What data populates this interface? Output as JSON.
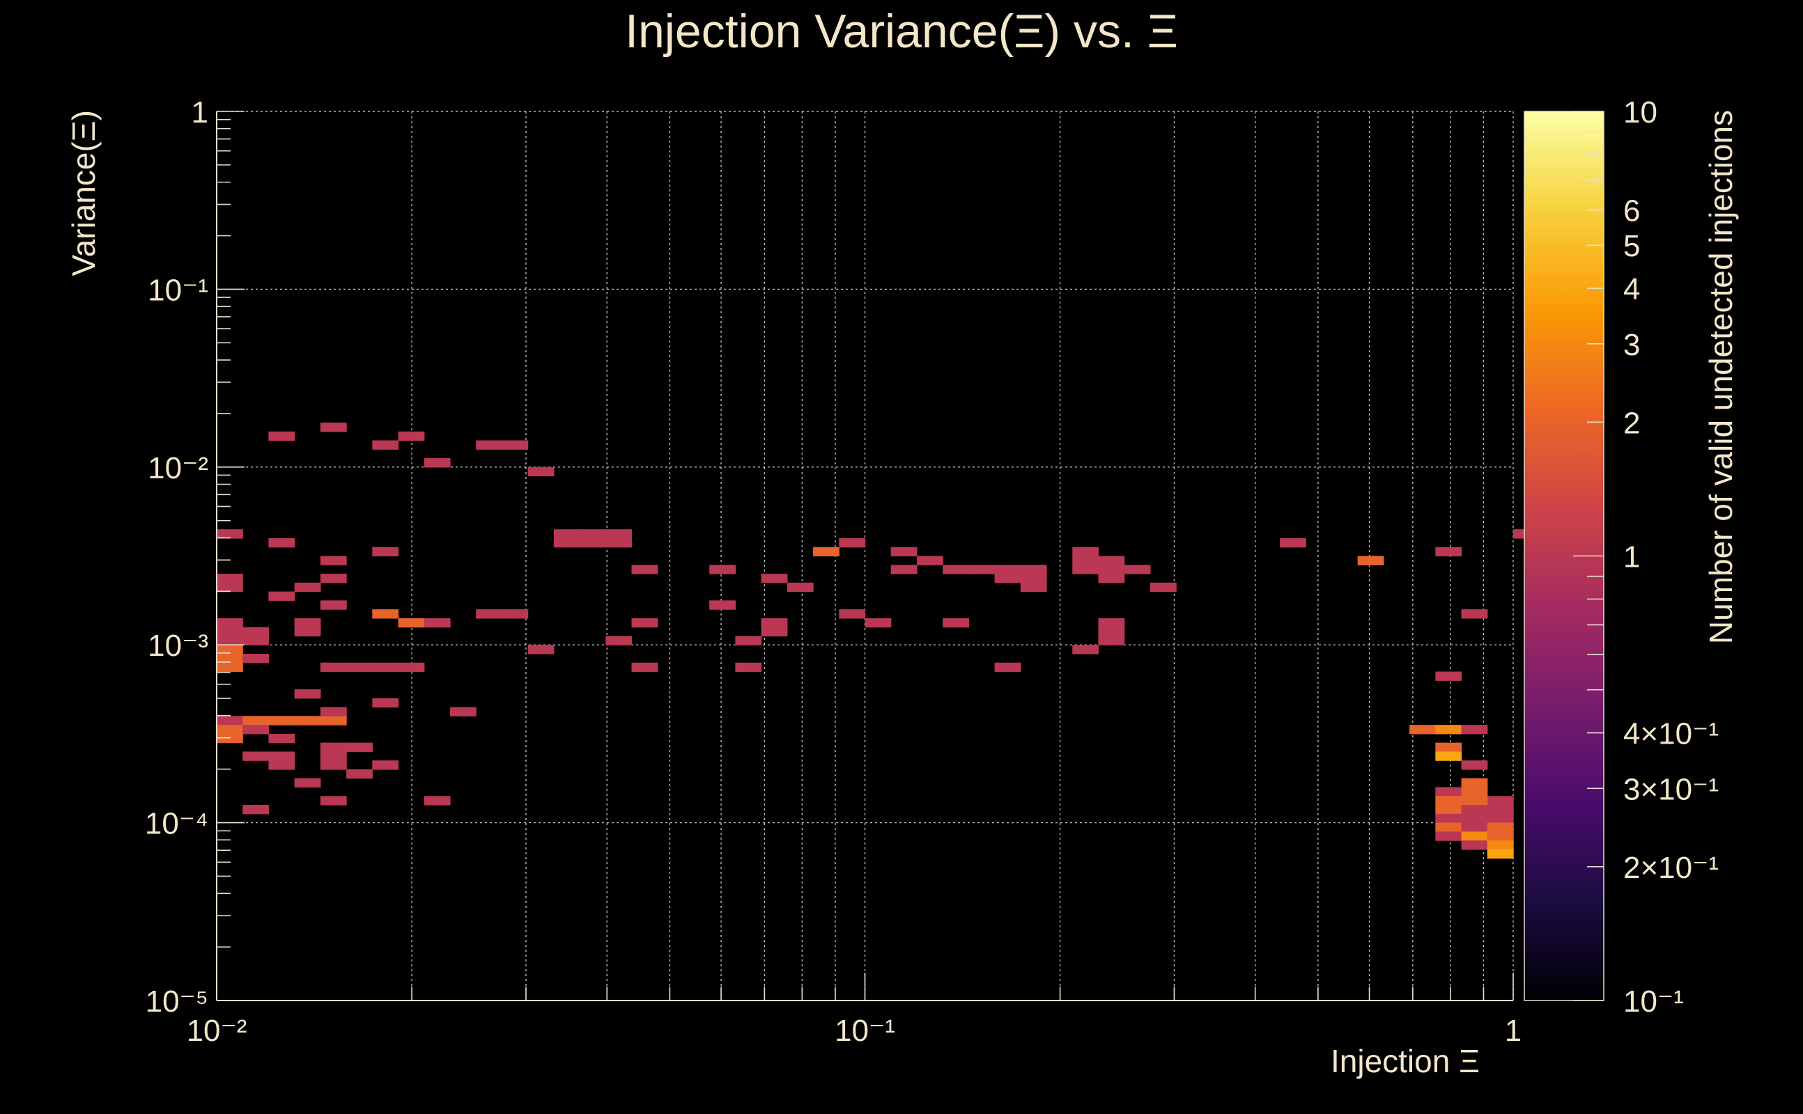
{
  "chart_data": {
    "type": "heatmap",
    "title": "Injection Variance(Ξ) vs. Ξ",
    "xlabel": "Injection Ξ",
    "ylabel": "Variance(Ξ)",
    "zlabel": "Number of valid undetected injections",
    "xscale": "log",
    "yscale": "log",
    "zscale": "log",
    "xlim": [
      0.01,
      1
    ],
    "ylim": [
      1e-05,
      1
    ],
    "zlim": [
      0.1,
      10
    ],
    "x_bins_per_decade": 25,
    "y_bins_per_decade": 20,
    "x_ticks": [
      {
        "value": 0.01,
        "label": "10⁻²"
      },
      {
        "value": 0.1,
        "label": "10⁻¹"
      },
      {
        "value": 1,
        "label": "1"
      }
    ],
    "y_ticks": [
      {
        "value": 1,
        "label": "1"
      },
      {
        "value": 0.1,
        "label": "10⁻¹"
      },
      {
        "value": 0.01,
        "label": "10⁻²"
      },
      {
        "value": 0.001,
        "label": "10⁻³"
      },
      {
        "value": 0.0001,
        "label": "10⁻⁴"
      },
      {
        "value": 1e-05,
        "label": "10⁻⁵"
      }
    ],
    "z_ticks": [
      {
        "value": 10,
        "label": "10"
      },
      {
        "value": 6,
        "label": "6"
      },
      {
        "value": 5,
        "label": "5"
      },
      {
        "value": 4,
        "label": "4"
      },
      {
        "value": 3,
        "label": "3"
      },
      {
        "value": 2,
        "label": "2"
      },
      {
        "value": 1,
        "label": "1"
      },
      {
        "value": 0.4,
        "label": "4×10⁻¹"
      },
      {
        "value": 0.3,
        "label": "3×10⁻¹"
      },
      {
        "value": 0.2,
        "label": "2×10⁻¹"
      },
      {
        "value": 0.1,
        "label": "10⁻¹"
      }
    ],
    "palette": [
      "#000004",
      "#1b0c41",
      "#4a0c6b",
      "#781c6d",
      "#a52c60",
      "#cf4446",
      "#ed6925",
      "#fb9b06",
      "#f7d13d",
      "#fcffa4"
    ],
    "cells_note": "each cell: [x_bin_index, y_bin_index, count]; x bin i spans 10^(-2+i/25) to 10^(-2+(i+1)/25); y bin j spans 10^(-5+j/20) to 10^(-5+(j+1)/20)",
    "cells": [
      [
        2,
        63,
        1
      ],
      [
        4,
        64,
        1
      ],
      [
        6,
        62,
        1
      ],
      [
        7,
        63,
        1
      ],
      [
        8,
        60,
        1
      ],
      [
        10,
        62,
        1
      ],
      [
        11,
        62,
        1
      ],
      [
        12,
        59,
        1
      ],
      [
        0,
        52,
        1
      ],
      [
        2,
        51,
        1
      ],
      [
        4,
        49,
        1
      ],
      [
        6,
        50,
        1
      ],
      [
        13,
        51,
        1
      ],
      [
        14,
        51,
        1
      ],
      [
        13,
        52,
        1
      ],
      [
        14,
        52,
        1
      ],
      [
        15,
        51,
        1
      ],
      [
        15,
        52,
        1
      ],
      [
        16,
        48,
        1
      ],
      [
        19,
        48,
        1
      ],
      [
        21,
        47,
        1
      ],
      [
        22,
        46,
        1
      ],
      [
        23,
        50,
        2
      ],
      [
        24,
        51,
        1
      ],
      [
        26,
        50,
        1
      ],
      [
        27,
        49,
        1
      ],
      [
        26,
        48,
        1
      ],
      [
        28,
        48,
        1
      ],
      [
        29,
        48,
        1
      ],
      [
        30,
        48,
        1
      ],
      [
        31,
        48,
        1
      ],
      [
        30,
        47,
        1
      ],
      [
        31,
        47,
        1
      ],
      [
        31,
        46,
        1
      ],
      [
        33,
        50,
        1
      ],
      [
        33,
        49,
        1
      ],
      [
        34,
        49,
        1
      ],
      [
        33,
        48,
        1
      ],
      [
        34,
        48,
        1
      ],
      [
        35,
        48,
        1
      ],
      [
        34,
        47,
        1
      ],
      [
        36,
        46,
        1
      ],
      [
        41,
        51,
        1
      ],
      [
        44,
        49,
        2
      ],
      [
        47,
        50,
        1
      ],
      [
        50,
        52,
        1
      ],
      [
        0,
        47,
        1
      ],
      [
        0,
        46,
        1
      ],
      [
        2,
        45,
        1
      ],
      [
        3,
        46,
        1
      ],
      [
        4,
        44,
        1
      ],
      [
        4,
        47,
        1
      ],
      [
        6,
        43,
        2
      ],
      [
        7,
        42,
        2
      ],
      [
        8,
        42,
        1
      ],
      [
        10,
        43,
        1
      ],
      [
        11,
        43,
        1
      ],
      [
        12,
        39,
        1
      ],
      [
        15,
        40,
        1
      ],
      [
        16,
        42,
        1
      ],
      [
        19,
        44,
        1
      ],
      [
        20,
        40,
        1
      ],
      [
        21,
        41,
        1
      ],
      [
        21,
        42,
        1
      ],
      [
        24,
        43,
        1
      ],
      [
        25,
        42,
        1
      ],
      [
        28,
        42,
        1
      ],
      [
        33,
        39,
        1
      ],
      [
        34,
        42,
        1
      ],
      [
        34,
        41,
        1
      ],
      [
        34,
        40,
        1
      ],
      [
        48,
        43,
        1
      ],
      [
        0,
        42,
        1
      ],
      [
        0,
        41,
        1
      ],
      [
        0,
        40,
        1
      ],
      [
        1,
        40,
        1
      ],
      [
        1,
        41,
        1
      ],
      [
        3,
        41,
        1
      ],
      [
        3,
        42,
        1
      ],
      [
        0,
        39,
        2
      ],
      [
        0,
        38,
        2
      ],
      [
        0,
        37,
        2
      ],
      [
        1,
        38,
        1
      ],
      [
        4,
        37,
        1
      ],
      [
        5,
        37,
        1
      ],
      [
        6,
        37,
        1
      ],
      [
        7,
        37,
        1
      ],
      [
        16,
        37,
        1
      ],
      [
        20,
        37,
        1
      ],
      [
        30,
        37,
        1
      ],
      [
        3,
        34,
        1
      ],
      [
        6,
        33,
        1
      ],
      [
        9,
        32,
        1
      ],
      [
        0,
        31,
        1
      ],
      [
        0,
        30,
        2
      ],
      [
        0,
        29,
        2
      ],
      [
        1,
        31,
        2
      ],
      [
        2,
        31,
        2
      ],
      [
        3,
        31,
        2
      ],
      [
        4,
        31,
        2
      ],
      [
        4,
        32,
        1
      ],
      [
        1,
        30,
        1
      ],
      [
        2,
        29,
        1
      ],
      [
        1,
        27,
        1
      ],
      [
        2,
        27,
        1
      ],
      [
        2,
        26,
        1
      ],
      [
        4,
        27,
        1
      ],
      [
        4,
        28,
        1
      ],
      [
        5,
        28,
        1
      ],
      [
        4,
        26,
        1
      ],
      [
        6,
        26,
        1
      ],
      [
        5,
        25,
        1
      ],
      [
        3,
        24,
        1
      ],
      [
        4,
        22,
        1
      ],
      [
        8,
        22,
        1
      ],
      [
        1,
        21,
        1
      ],
      [
        47,
        36,
        1
      ],
      [
        46,
        30,
        2
      ],
      [
        47,
        30,
        3
      ],
      [
        48,
        30,
        1
      ],
      [
        47,
        28,
        2
      ],
      [
        47,
        27,
        4
      ],
      [
        48,
        26,
        1
      ],
      [
        47,
        23,
        1
      ],
      [
        48,
        24,
        2
      ],
      [
        48,
        23,
        2
      ],
      [
        49,
        22,
        1
      ],
      [
        47,
        22,
        2
      ],
      [
        48,
        22,
        2
      ],
      [
        47,
        21,
        2
      ],
      [
        48,
        21,
        1
      ],
      [
        49,
        21,
        1
      ],
      [
        47,
        20,
        1
      ],
      [
        48,
        20,
        1
      ],
      [
        49,
        20,
        1
      ],
      [
        47,
        19,
        2
      ],
      [
        48,
        19,
        1
      ],
      [
        49,
        19,
        2
      ],
      [
        47,
        18,
        1
      ],
      [
        48,
        18,
        3
      ],
      [
        49,
        18,
        2
      ],
      [
        48,
        17,
        1
      ],
      [
        49,
        17,
        3
      ],
      [
        49,
        16,
        4
      ]
    ]
  }
}
